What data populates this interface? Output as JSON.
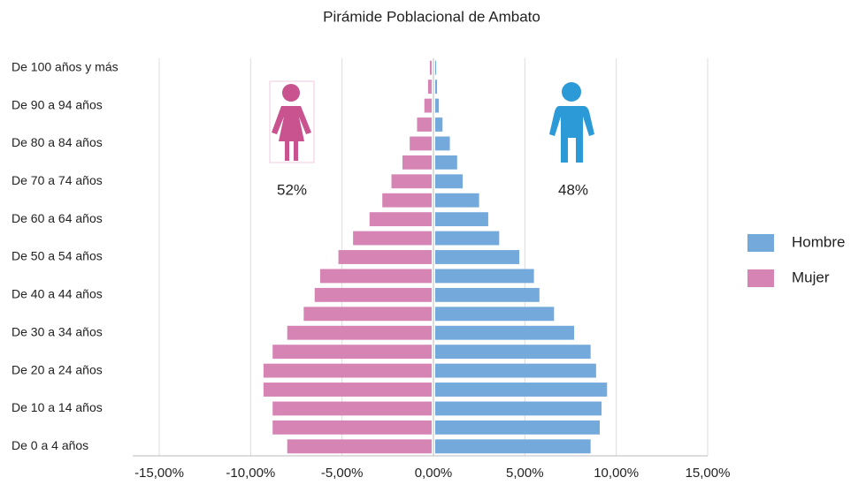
{
  "chart_data": {
    "type": "pyramid",
    "title": "Pirámide Poblacional de Ambato",
    "categories": [
      "De 0 a 4 años",
      null,
      "De 10 a 14 años",
      null,
      "De 20 a 24 años",
      null,
      "De 30 a 34 años",
      null,
      "De 40 a 44 años",
      null,
      "De 50 a 54 años",
      null,
      "De 60 a 64 años",
      null,
      "De 70 a 74 años",
      null,
      "De 80 a 84 años",
      null,
      "De 90 a 94 años",
      null,
      "De 100 años y más"
    ],
    "series": [
      {
        "name": "Hombre",
        "color": "#74a9dc",
        "values": [
          8.5,
          9.0,
          9.1,
          9.4,
          8.8,
          8.5,
          7.6,
          6.5,
          5.7,
          5.4,
          4.6,
          3.5,
          2.9,
          2.4,
          1.5,
          1.2,
          0.8,
          0.4,
          0.2,
          0.1,
          0.05
        ]
      },
      {
        "name": "Mujer",
        "color": "#d584b4",
        "values": [
          -7.9,
          -8.7,
          -8.7,
          -9.2,
          -9.2,
          -8.7,
          -7.9,
          -7.0,
          -6.4,
          -6.1,
          -5.1,
          -4.3,
          -3.4,
          -2.7,
          -2.2,
          -1.6,
          -1.2,
          -0.8,
          -0.4,
          -0.2,
          -0.1
        ]
      }
    ],
    "xlim": [
      -15,
      15
    ],
    "xticks": [
      {
        "value": -15,
        "label": "-15,00%"
      },
      {
        "value": -10,
        "label": "-10,00%"
      },
      {
        "value": -5,
        "label": "-5,00%"
      },
      {
        "value": 0,
        "label": "0,00%"
      },
      {
        "value": 5,
        "label": "5,00%"
      },
      {
        "value": 10,
        "label": "10,00%"
      },
      {
        "value": 15,
        "label": "15,00%"
      }
    ],
    "grid": true,
    "legend": "right",
    "annotations": [
      "52%",
      "48%"
    ]
  }
}
